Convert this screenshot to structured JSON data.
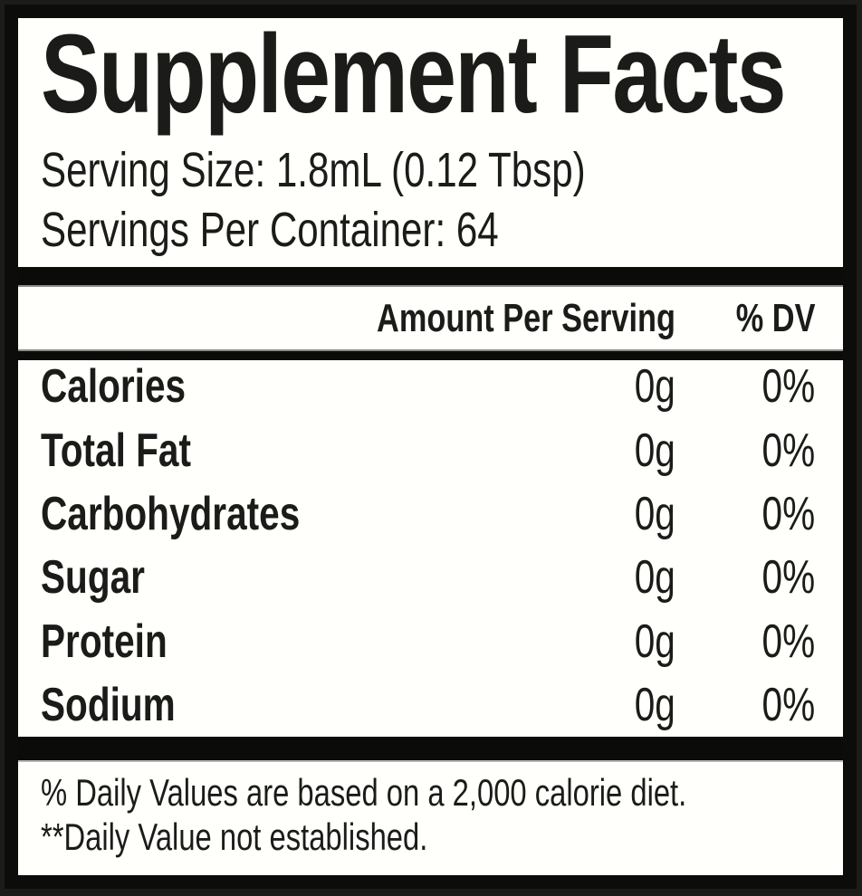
{
  "label": {
    "title": "Supplement Facts",
    "serving_size_line": "Serving Size: 1.8mL (0.12 Tbsp)",
    "servings_per_container_line": "Servings Per Container: 64",
    "table": {
      "headers": {
        "amount": "Amount Per Serving",
        "dv": "% DV"
      },
      "rows": [
        {
          "name": "Calories",
          "amount": "0g",
          "dv": "0%"
        },
        {
          "name": "Total Fat",
          "amount": "0g",
          "dv": "0%"
        },
        {
          "name": "Carbohydrates",
          "amount": "0g",
          "dv": "0%"
        },
        {
          "name": "Sugar",
          "amount": "0g",
          "dv": "0%"
        },
        {
          "name": "Protein",
          "amount": "0g",
          "dv": "0%"
        },
        {
          "name": "Sodium",
          "amount": "0g",
          "dv": "0%"
        }
      ]
    },
    "footnotes": [
      "% Daily Values are based on a 2,000 calorie diet.",
      "**Daily Value not established."
    ],
    "colors": {
      "background_outer": "#1c1d1b",
      "border_black": "#0c0c0b",
      "label_white": "#fffffb",
      "text_black": "#1b1b19",
      "divider_edge_gray": "#8d8d8b"
    }
  }
}
